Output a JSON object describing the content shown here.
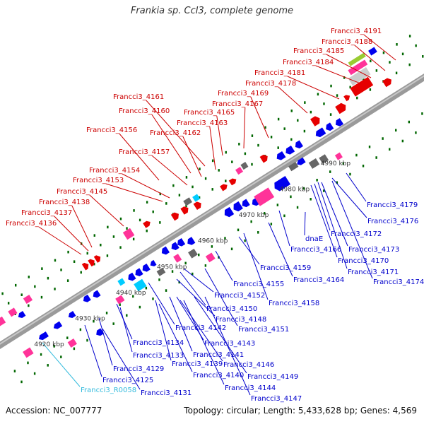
{
  "title": "Frankia sp. CcI3, complete genome",
  "accession": "Accession: NC_007777",
  "summary": "Topology: circular; Length: 5,433,628 bp; Genes: 4,569",
  "colors": {
    "backbone": "#808080",
    "cds_forward": "#e60000",
    "cds_reverse": "#0000ee",
    "rrna": "#ff3399",
    "trna": "#00ccff",
    "misc": "#666666",
    "label_forward": "#cc0000",
    "label_reverse": "#0000cc",
    "label_rna": "#33bbdd",
    "tick": "#006600"
  },
  "kbp_ticks": [
    "4920 kbp",
    "4930 kbp",
    "4940 kbp",
    "4950 kbp",
    "4960 kbp",
    "4970 kbp",
    "4980 kbp",
    "4990 kbp"
  ],
  "labels_top": [
    "Francci3_4191",
    "Francci3_4188",
    "Francci3_4185",
    "Francci3_4184",
    "Francci3_4181",
    "Francci3_4178",
    "Francci3_4169",
    "Francci3_4167",
    "Francci3_4161",
    "Francci3_4165",
    "Francci3_4160",
    "Francci3_4163",
    "Francci3_4162",
    "Francci3_4156",
    "Francci3_4157",
    "Francci3_4154",
    "Francci3_4153",
    "Francci3_4145",
    "Francci3_4138",
    "Francci3_4137",
    "Francci3_4136"
  ],
  "labels_bottom": [
    "Francci3_4179",
    "Francci3_4176",
    "Francci3_4172",
    "Francci3_4173",
    "dnaE",
    "Francci3_4166",
    "Francci3_4170",
    "Francci3_4171",
    "Francci3_4174",
    "Francci3_4159",
    "Francci3_4164",
    "Francci3_4155",
    "Francci3_4158",
    "Francci3_4152",
    "Francci3_4150",
    "Francci3_4148",
    "Francci3_4151",
    "Francci3_4142",
    "Francci3_4143",
    "Francci3_4134",
    "Francci3_4141",
    "Francci3_4133",
    "Francci3_4139",
    "Francci3_4146",
    "Francci3_4129",
    "Francci3_4140",
    "Francci3_4149",
    "Francci3_4125",
    "Francci3_4144",
    "Francci3_R0058",
    "Francci3_4131",
    "Francci3_4147"
  ]
}
